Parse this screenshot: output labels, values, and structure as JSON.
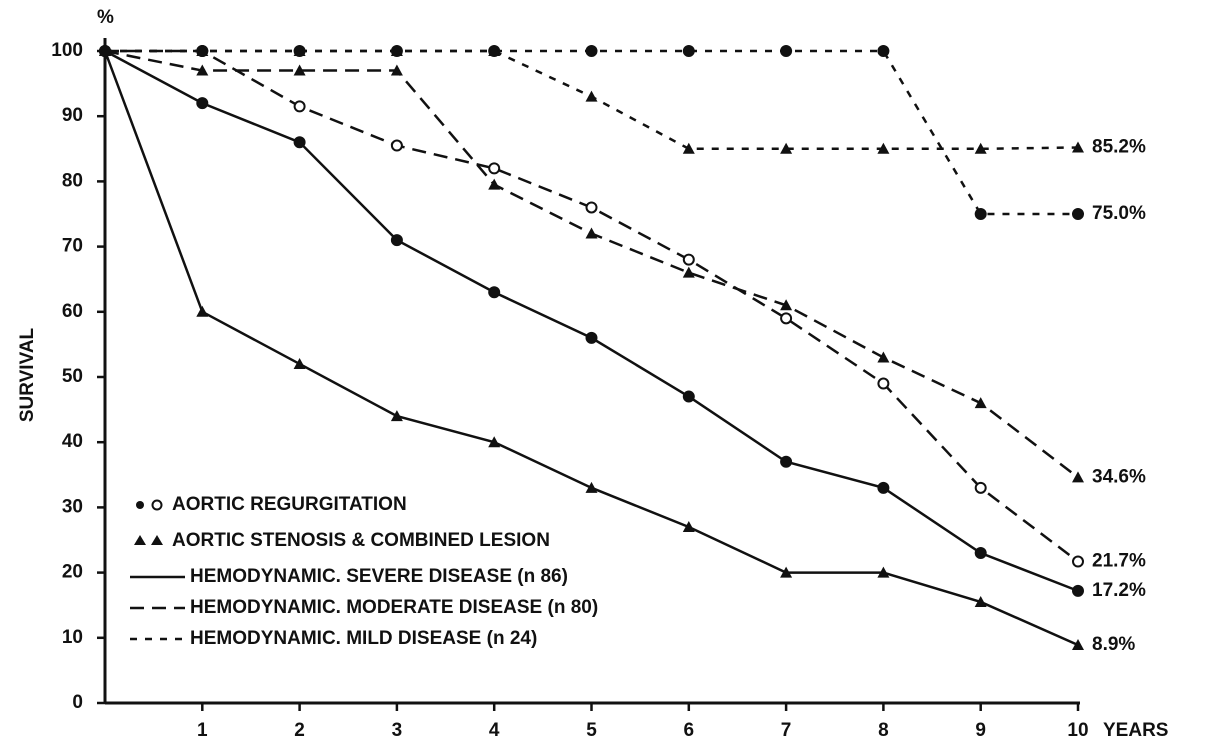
{
  "chart_data": {
    "type": "line",
    "y_unit_label": "%",
    "ylabel": "SURVIVAL",
    "xlabel": "YEARS",
    "x": [
      0,
      1,
      2,
      3,
      4,
      5,
      6,
      7,
      8,
      9,
      10
    ],
    "xlim": [
      0,
      10
    ],
    "xticks": [
      1,
      2,
      3,
      4,
      5,
      6,
      7,
      8,
      9,
      10
    ],
    "ylim": [
      0,
      100
    ],
    "yticks": [
      0,
      10,
      20,
      30,
      40,
      50,
      60,
      70,
      80,
      90,
      100
    ],
    "series": [
      {
        "color": "#111111",
        "marker": "circle-filled",
        "line_style": "solid",
        "values": [
          100,
          92,
          86,
          71,
          63,
          56,
          47,
          37,
          33,
          23,
          17.2
        ],
        "value_labels": [
          null,
          null,
          null,
          null,
          null,
          null,
          null,
          null,
          null,
          null,
          "17.2%"
        ]
      },
      {
        "color": "#111111",
        "marker": "triangle",
        "line_style": "solid",
        "values": [
          100,
          60,
          52,
          44,
          40,
          33,
          27,
          20,
          20,
          15.5,
          8.9
        ],
        "value_labels": [
          null,
          null,
          null,
          null,
          null,
          null,
          null,
          null,
          null,
          null,
          "8.9%"
        ]
      },
      {
        "color": "#111111",
        "marker": "circle-open",
        "line_style": "dashed",
        "values": [
          100,
          100,
          91.5,
          85.5,
          82,
          76,
          68,
          59,
          49,
          33,
          21.7
        ],
        "value_labels": [
          null,
          null,
          null,
          null,
          null,
          null,
          null,
          null,
          null,
          null,
          "21.7%"
        ]
      },
      {
        "color": "#111111",
        "marker": "triangle",
        "line_style": "dashed",
        "values": [
          100,
          97,
          97,
          97,
          79.5,
          72,
          66,
          61,
          53,
          46,
          34.6
        ],
        "value_labels": [
          null,
          null,
          null,
          null,
          null,
          null,
          null,
          null,
          null,
          null,
          "34.6%"
        ]
      },
      {
        "color": "#111111",
        "marker": "circle-filled",
        "line_style": "short-dashed",
        "values": [
          100,
          100,
          100,
          100,
          100,
          100,
          100,
          100,
          100,
          75,
          75.0
        ],
        "value_labels": [
          null,
          null,
          null,
          null,
          null,
          null,
          null,
          null,
          null,
          null,
          "75.0%"
        ]
      },
      {
        "color": "#111111",
        "marker": "triangle",
        "line_style": "short-dashed",
        "values": [
          100,
          100,
          100,
          100,
          100,
          93,
          85,
          85,
          85,
          85,
          85.2
        ],
        "value_labels": [
          null,
          null,
          null,
          null,
          null,
          null,
          null,
          null,
          null,
          null,
          "85.2%"
        ]
      }
    ],
    "legend": [
      "AORTIC REGURGITATION",
      "AORTIC STENOSIS & COMBINED LESION",
      "HEMODYNAMIC. SEVERE DISEASE (n 86)",
      "HEMODYNAMIC. MODERATE DISEASE (n 80)",
      "HEMODYNAMIC. MILD DISEASE (n 24)"
    ]
  }
}
